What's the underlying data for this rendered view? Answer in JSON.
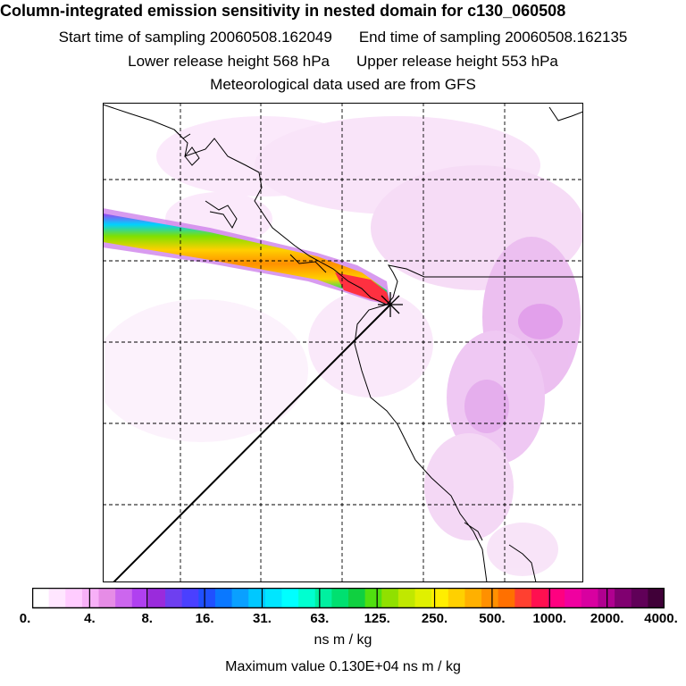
{
  "title": "Column-integrated emission sensitivity in nested domain for c130_060508",
  "start_label": "Start time of sampling 20060508.162049",
  "end_label": "End time of sampling 20060508.162135",
  "lower_label": "Lower release height  568 hPa",
  "upper_label": "Upper release height  553 hPa",
  "met_label": "Meteorological data used are from GFS",
  "colorbar": {
    "units": "ns m / kg",
    "tick_labels": [
      "0.",
      "4.",
      "8.",
      "16.",
      "31.",
      "63.",
      "125.",
      "250.",
      "500.",
      "1000.",
      "2000.",
      "4000."
    ],
    "colors": [
      "#ffffff",
      "#ffe6ff",
      "#ffccff",
      "#f7b0f7",
      "#e68ce6",
      "#cc66ee",
      "#b040f0",
      "#9a2bdc",
      "#6e3ff0",
      "#4a40ff",
      "#2050ff",
      "#0a78ff",
      "#0aa0ff",
      "#00c8ff",
      "#00e6ff",
      "#00ffff",
      "#00ffd0",
      "#00f0a0",
      "#00e070",
      "#10d040",
      "#50e010",
      "#90e000",
      "#c0e800",
      "#e0f000",
      "#ffee00",
      "#ffd000",
      "#ffb000",
      "#ff9000",
      "#ff7000",
      "#ff4030",
      "#ff1050",
      "#ff0080",
      "#f000a0",
      "#d800a0",
      "#b00090",
      "#800070",
      "#600058",
      "#400038"
    ]
  },
  "max_value_label": "Maximum value  0.130E+04 ns m / kg",
  "chart_data": {
    "type": "heatmap",
    "title": "Column-integrated emission sensitivity in nested domain for c130_060508",
    "value_unit": "ns m / kg",
    "scale_levels": [
      0,
      4,
      8,
      16,
      31,
      63,
      125,
      250,
      500,
      1000,
      2000,
      4000
    ],
    "maximum_value": 1300,
    "release_point": "marked with star at end of high-sensitivity plume",
    "features": [
      "high-sensitivity plume extending from west edge to release point",
      "diffuse low-level sensitivity over eastern half",
      "straight diagonal flight track line"
    ]
  }
}
